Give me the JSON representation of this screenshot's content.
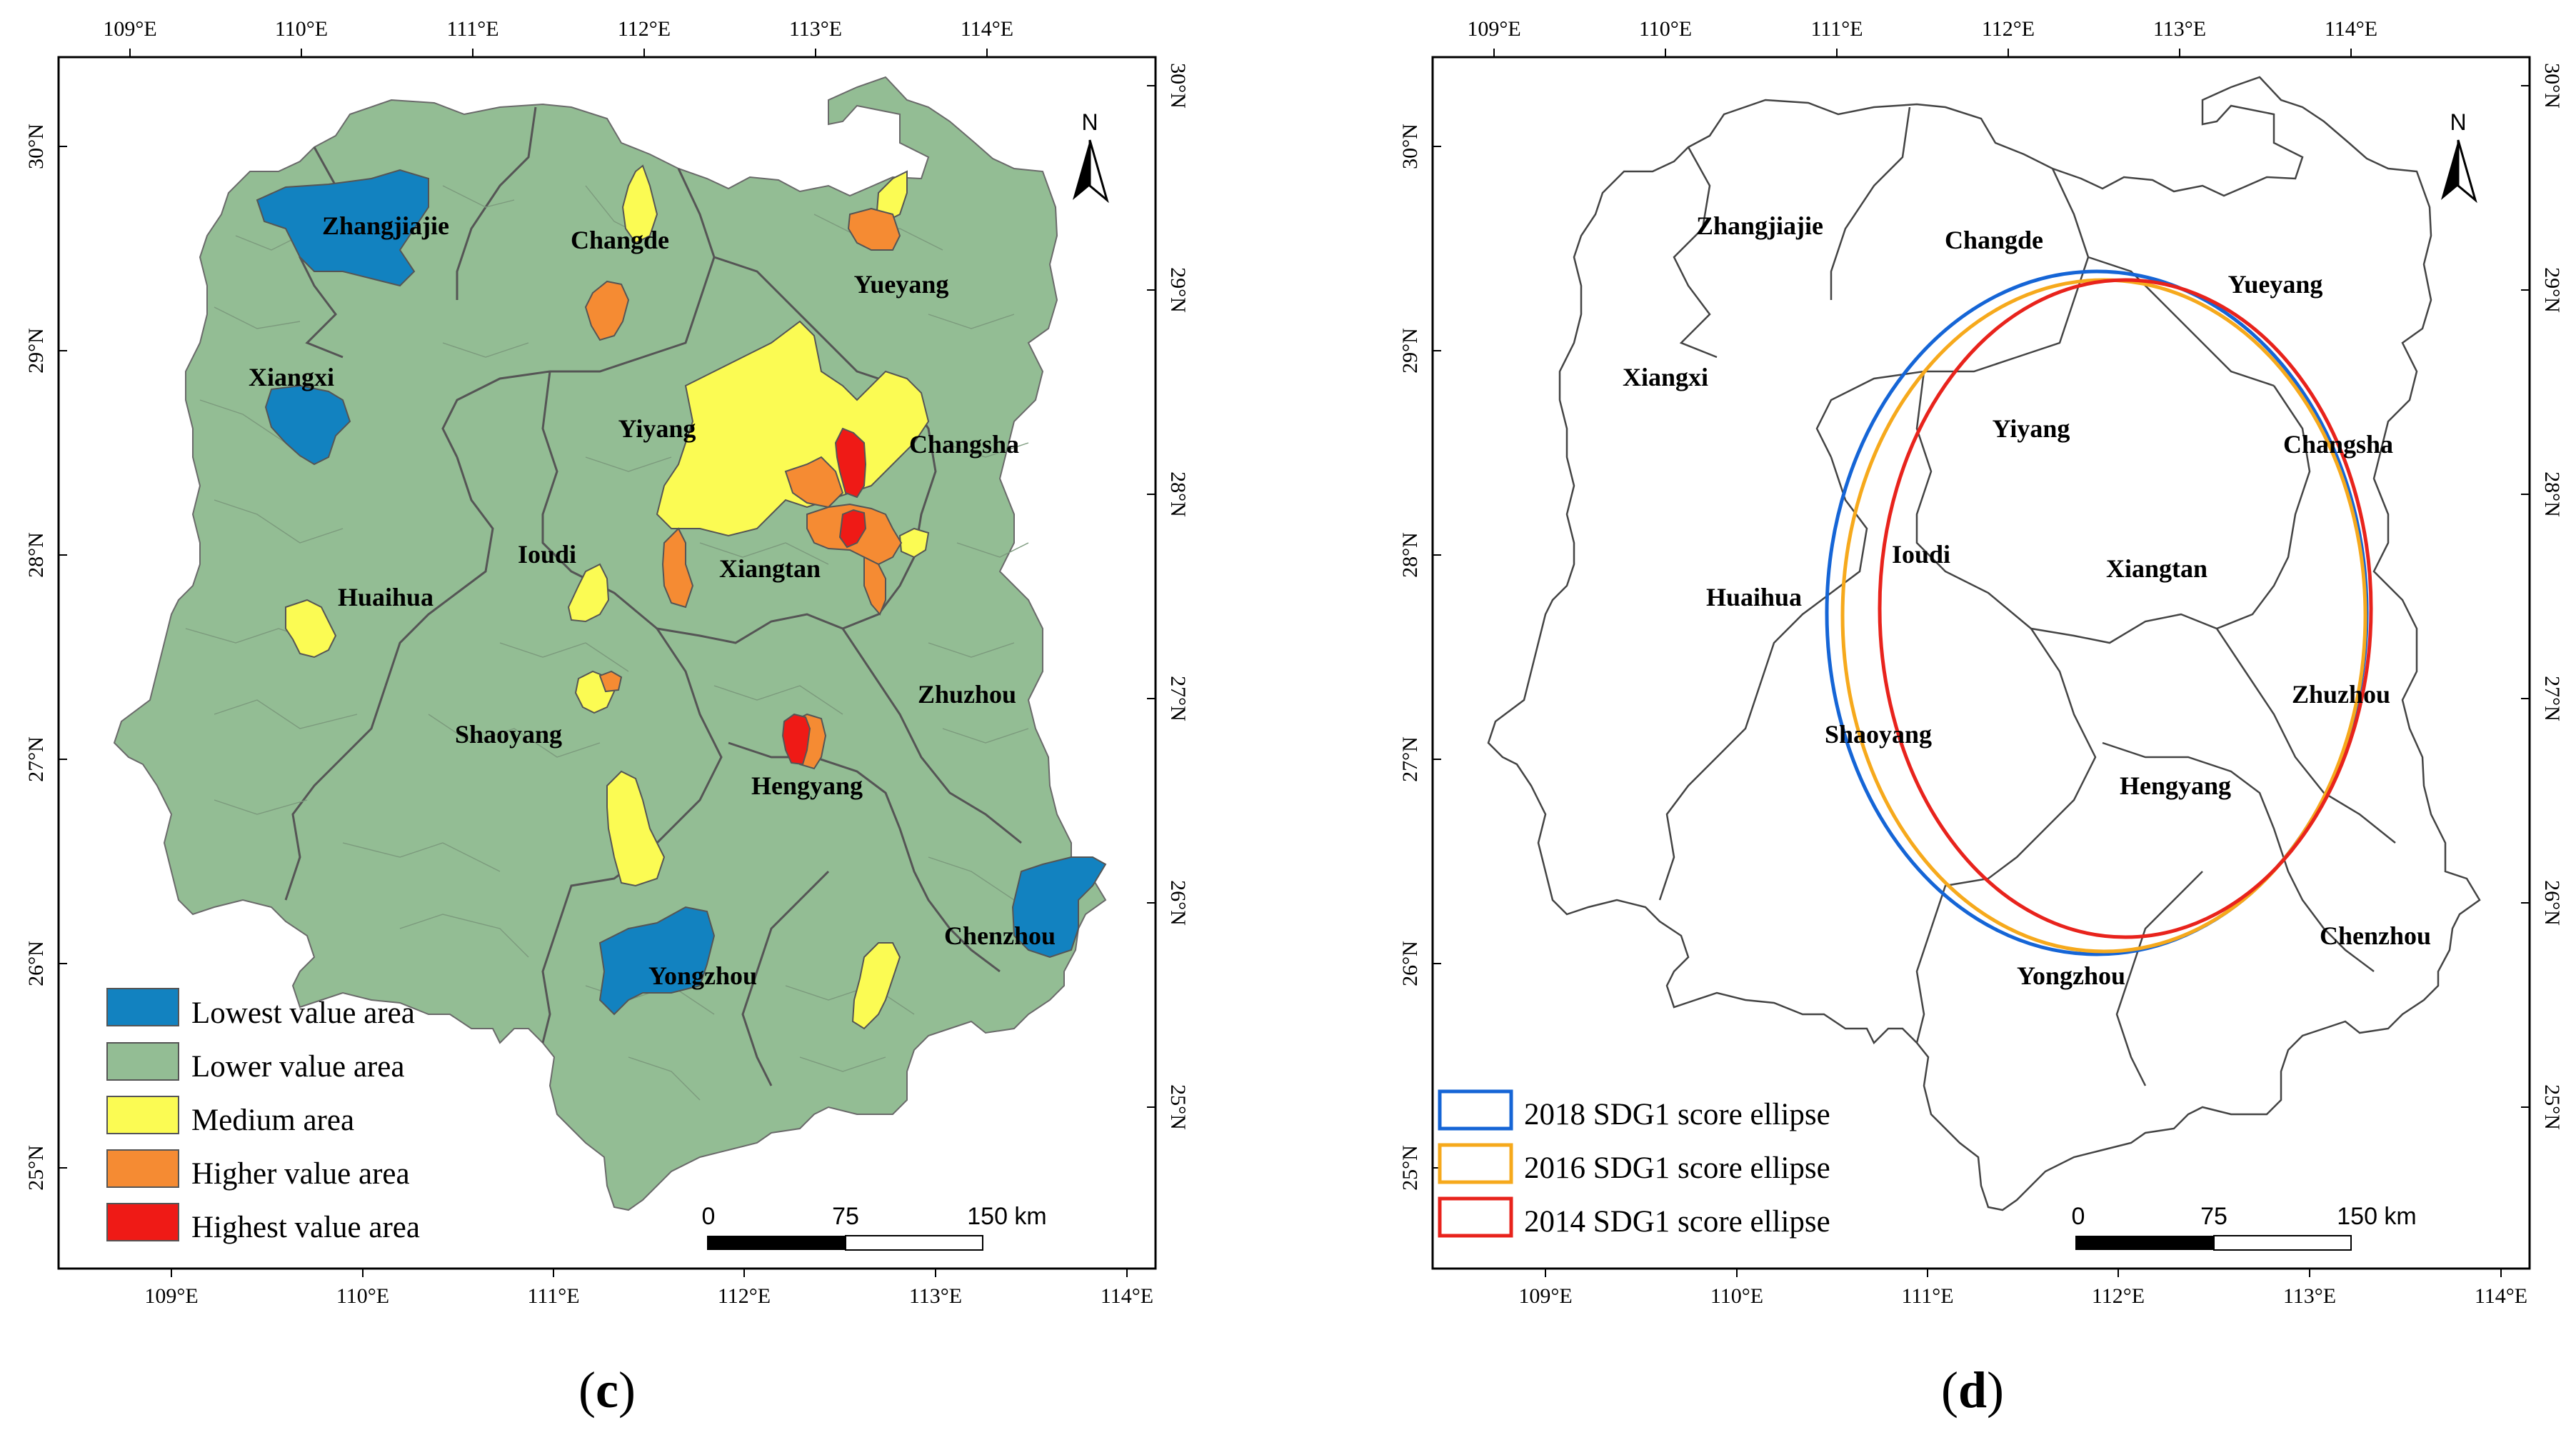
{
  "colors": {
    "lowest": "#1282c0",
    "lower": "#93bd94",
    "medium": "#fbfb53",
    "higher": "#f58b33",
    "highest": "#ef1a16",
    "ellipse_2018": "#1565d6",
    "ellipse_2016": "#f6a91c",
    "ellipse_2014": "#e8231c",
    "border": "#6a6a6a"
  },
  "axes": {
    "lon_ticks": [
      "109°E",
      "110°E",
      "111°E",
      "112°E",
      "113°E",
      "114°E"
    ],
    "lat_ticks": [
      "30°N",
      "29°N",
      "28°N",
      "27°N",
      "26°N",
      "25°N"
    ]
  },
  "north_arrow": {
    "label": "N",
    "icon": "north-arrow-icon"
  },
  "scale_bar": {
    "labels": [
      "0",
      "75",
      "150 km"
    ]
  },
  "panels": [
    {
      "caption_open": "(",
      "caption_letter": "c",
      "caption_close": ")",
      "cities": [
        "Zhangjiajie",
        "Changde",
        "Yueyang",
        "Xiangxi",
        "Yiyang",
        "Changsha",
        "Ioudi",
        "Xiangtan",
        "Huaihua",
        "Zhuzhou",
        "Shaoyang",
        "Hengyang",
        "Chenzhou",
        "Yongzhou"
      ],
      "legend": [
        {
          "label": "Lowest value area",
          "color": "#1282c0"
        },
        {
          "label": "Lower value area",
          "color": "#93bd94"
        },
        {
          "label": "Medium area",
          "color": "#fbfb53"
        },
        {
          "label": "Higher value area",
          "color": "#f58b33"
        },
        {
          "label": "Highest value area",
          "color": "#ef1a16"
        }
      ]
    },
    {
      "caption_open": "(",
      "caption_letter": "d",
      "caption_close": ")",
      "cities": [
        "Zhangjiajie",
        "Changde",
        "Yueyang",
        "Xiangxi",
        "Yiyang",
        "Changsha",
        "Ioudi",
        "Xiangtan",
        "Huaihua",
        "Zhuzhou",
        "Shaoyang",
        "Hengyang",
        "Chenzhou",
        "Yongzhou"
      ],
      "legend": [
        {
          "label": "2018 SDG1 score ellipse",
          "color": "#1565d6"
        },
        {
          "label": "2016 SDG1 score ellipse",
          "color": "#f6a91c"
        },
        {
          "label": "2014 SDG1 score ellipse",
          "color": "#e8231c"
        }
      ]
    }
  ]
}
